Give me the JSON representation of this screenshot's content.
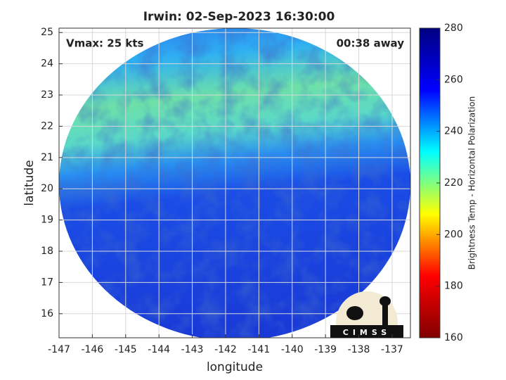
{
  "chart_data": {
    "type": "image",
    "title": "Irwin: 02-Sep-2023 16:30:00",
    "annotations": [
      "Vmax: 25 kts",
      "00:38 away"
    ],
    "xlabel": "longitude",
    "ylabel": "latitude",
    "xlim": [
      -147,
      -136.45
    ],
    "ylim": [
      15.23,
      25.14
    ],
    "xticks": [
      -147,
      -146,
      -145,
      -144,
      -143,
      -142,
      -141,
      -140,
      -139,
      -138,
      -137
    ],
    "yticks": [
      16,
      17,
      18,
      19,
      20,
      21,
      22,
      23,
      24,
      25
    ],
    "grid": true,
    "colorbar": {
      "label": "Brightness Temp - Horizontal Polarization",
      "clim": [
        160,
        280
      ],
      "ticks": [
        160,
        180,
        200,
        220,
        240,
        260,
        280
      ],
      "colormap": [
        "#800000",
        "#ff0000",
        "#ffff00",
        "#00ffff",
        "#0000ff",
        "#000080"
      ]
    },
    "logo": "CIMSS"
  }
}
